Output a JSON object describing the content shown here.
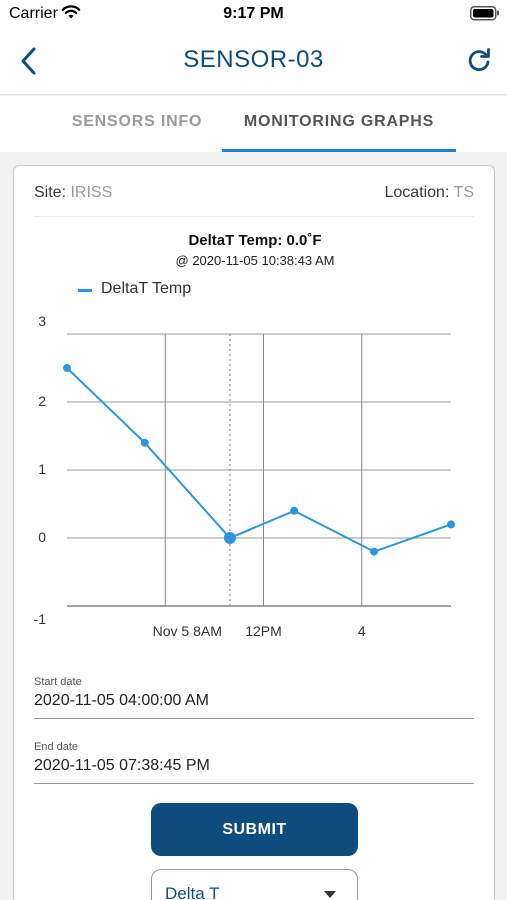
{
  "status_bar": {
    "carrier": "Carrier",
    "time": "9:17 PM",
    "wifi_icon": "wifi-icon",
    "battery_icon": "battery-icon"
  },
  "nav": {
    "title": "SENSOR-03",
    "back_icon": "chevron-left-icon",
    "refresh_icon": "refresh-icon"
  },
  "tabs": [
    {
      "label": "SENSORS INFO",
      "active": false
    },
    {
      "label": "MONITORING GRAPHS",
      "active": true
    }
  ],
  "site": {
    "label": "Site:",
    "value": "IRISS"
  },
  "location": {
    "label": "Location:",
    "value": "TS"
  },
  "chart_data": {
    "type": "line",
    "title": "DeltaT Temp: 0.0˚F",
    "subtitle": "@ 2020-11-05 10:38:43 AM",
    "series": [
      {
        "name": "DeltaT Temp",
        "color": "#2e95e0",
        "points": [
          {
            "x": "2020-11-05 04:00",
            "y": 2.5
          },
          {
            "x": "2020-11-05 07:10",
            "y": 1.4
          },
          {
            "x": "2020-11-05 10:38",
            "y": 0.0
          },
          {
            "x": "2020-11-05 13:15",
            "y": 0.4
          },
          {
            "x": "2020-11-05 16:30",
            "y": -0.2
          },
          {
            "x": "2020-11-05 19:38",
            "y": 0.2
          }
        ]
      }
    ],
    "highlight_x": "2020-11-05 10:38",
    "x_ticks": [
      "Nov 5 8AM",
      "12PM",
      "4"
    ],
    "y_ticks": [
      3,
      2,
      1,
      0,
      -1
    ],
    "ylim": [
      -1,
      3
    ],
    "grid": true,
    "legend_position": "top-left"
  },
  "form": {
    "start_label": "Start date",
    "start_value": "2020-11-05 04:00:00 AM",
    "end_label": "End date",
    "end_value": "2020-11-05 07:38:45 PM",
    "submit_label": "SUBMIT",
    "select_value": "Delta T",
    "select_icon": "chevron-down-icon"
  }
}
